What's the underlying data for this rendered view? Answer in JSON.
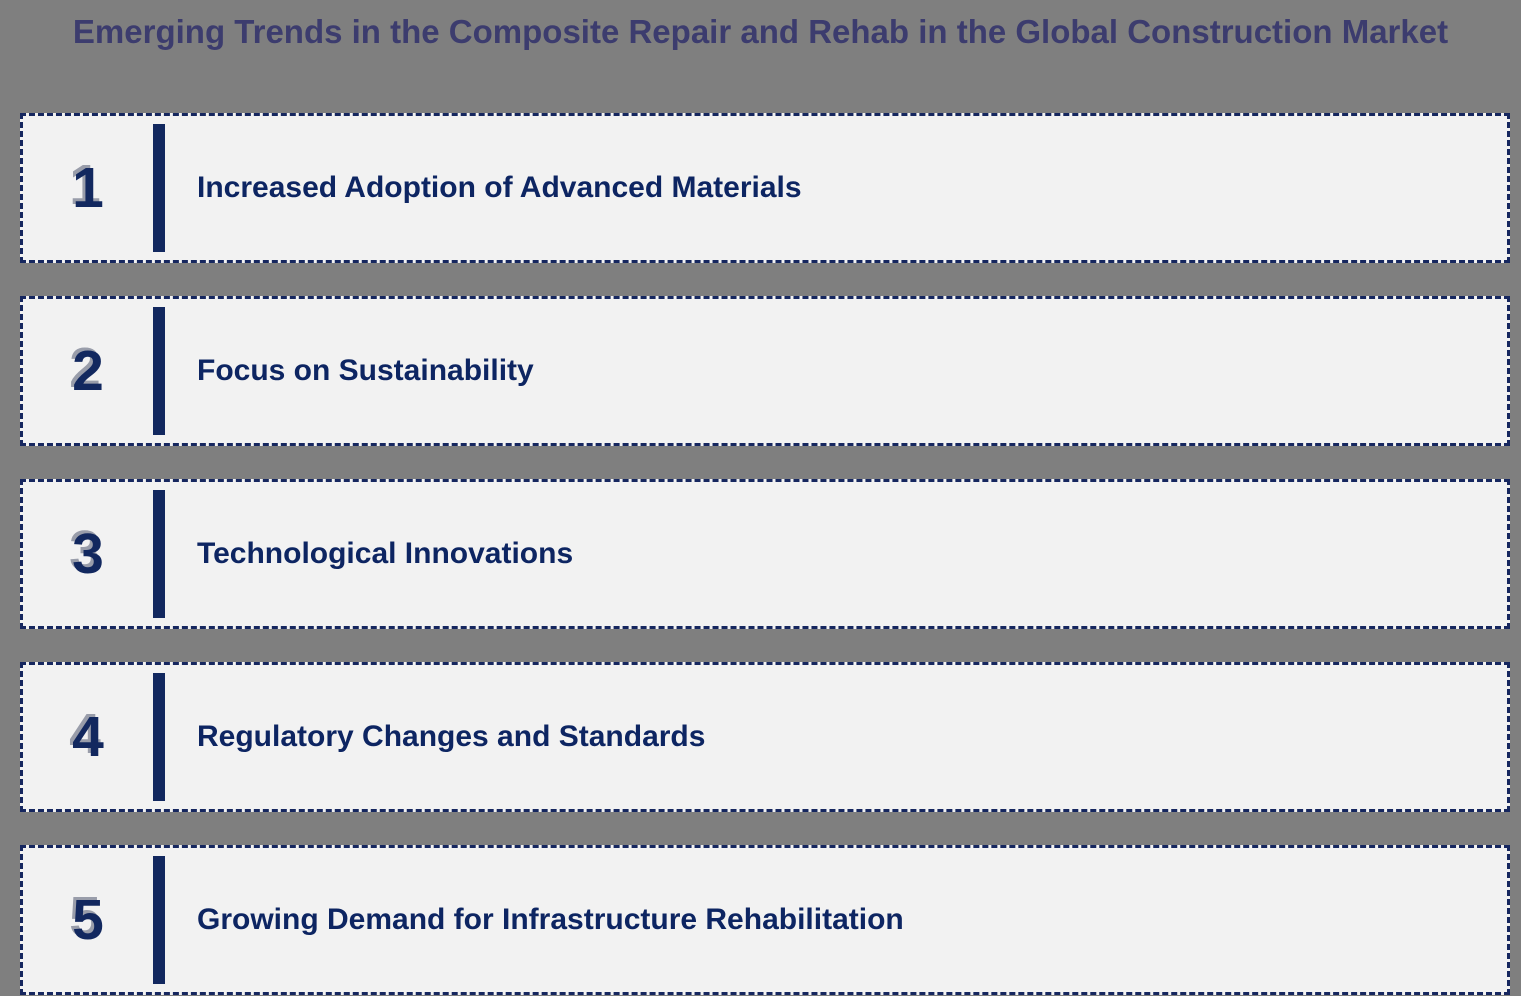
{
  "slide": {
    "title": "Emerging Trends in the Composite Repair and Rehab in the Global Construction Market",
    "trends": [
      {
        "number": "1",
        "label": "Increased Adoption of Advanced Materials"
      },
      {
        "number": "2",
        "label": "Focus on Sustainability"
      },
      {
        "number": "3",
        "label": "Technological Innovations"
      },
      {
        "number": "4",
        "label": "Regulatory Changes and Standards"
      },
      {
        "number": "5",
        "label": "Growing Demand for Infrastructure Rehabilitation"
      }
    ],
    "colors": {
      "background": "#7f7f7f",
      "panel_fill": "#f2f2f2",
      "navy_accent": "#12285f",
      "label_text": "#0d2562",
      "title_text": "#3c3c6e"
    }
  }
}
